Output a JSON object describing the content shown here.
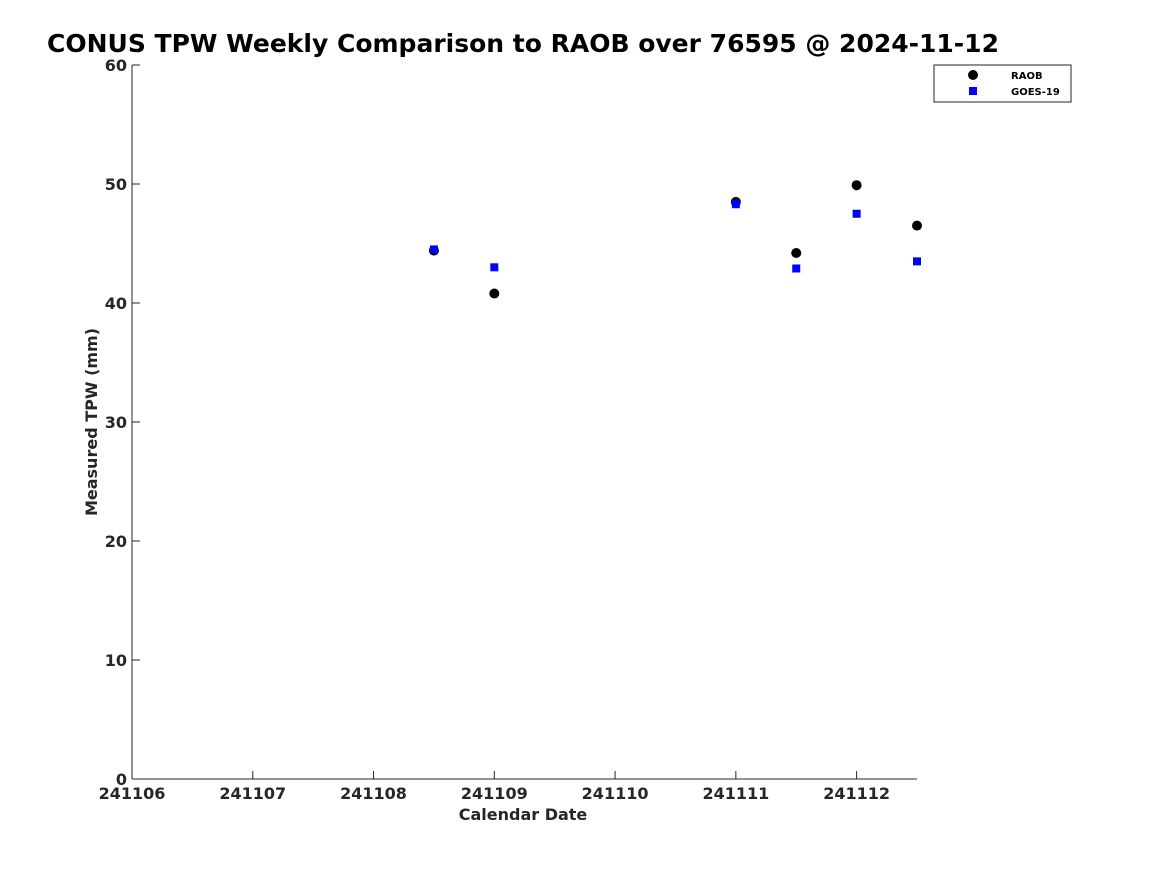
{
  "chart_data": {
    "type": "scatter",
    "title": "CONUS TPW Weekly Comparison to RAOB over 76595 @ 2024-11-12",
    "xlabel": "Calendar Date",
    "ylabel": "Measured TPW (mm)",
    "xlim": [
      0,
      6.5
    ],
    "ylim": [
      0,
      60
    ],
    "x_ticks": [
      {
        "value": 0,
        "label": "241106"
      },
      {
        "value": 1,
        "label": "241107"
      },
      {
        "value": 2,
        "label": "241108"
      },
      {
        "value": 3,
        "label": "241109"
      },
      {
        "value": 4,
        "label": "241110"
      },
      {
        "value": 5,
        "label": "241111"
      },
      {
        "value": 6,
        "label": "241112"
      }
    ],
    "y_ticks": [
      0,
      10,
      20,
      30,
      40,
      50,
      60
    ],
    "grid": false,
    "legend_position": "top-right",
    "series": [
      {
        "name": "RAOB",
        "marker": "circle",
        "color": "#000000",
        "points": [
          {
            "x": 2.5,
            "y": 44.4
          },
          {
            "x": 3.0,
            "y": 40.8
          },
          {
            "x": 5.0,
            "y": 48.5
          },
          {
            "x": 5.5,
            "y": 44.2
          },
          {
            "x": 6.0,
            "y": 49.9
          },
          {
            "x": 6.5,
            "y": 46.5
          }
        ]
      },
      {
        "name": "GOES-19",
        "marker": "square",
        "color": "#0000ff",
        "points": [
          {
            "x": 2.5,
            "y": 44.5
          },
          {
            "x": 3.0,
            "y": 43.0
          },
          {
            "x": 5.0,
            "y": 48.3
          },
          {
            "x": 5.5,
            "y": 42.9
          },
          {
            "x": 6.0,
            "y": 47.5
          },
          {
            "x": 6.5,
            "y": 43.5
          }
        ]
      }
    ]
  }
}
